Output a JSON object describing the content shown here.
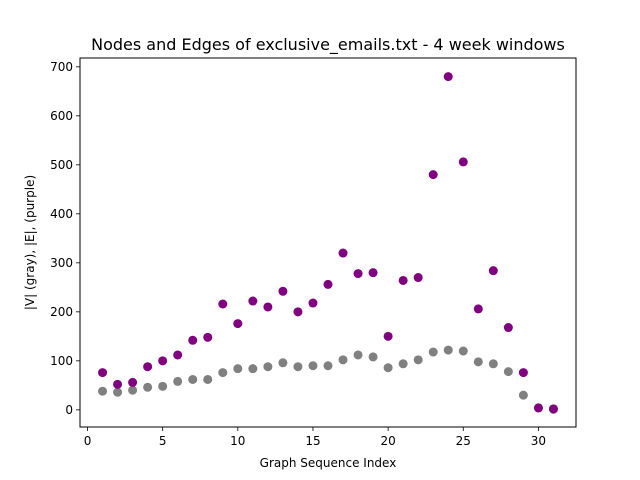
{
  "chart_data": {
    "type": "scatter",
    "title": "Nodes and Edges of exclusive_emails.txt - 4 week windows",
    "xlabel": "Graph Sequence Index",
    "ylabel": "|V| (gray), |E|, (purple)",
    "xlim": [
      -0.5,
      32.5
    ],
    "ylim": [
      -35,
      718
    ],
    "xticks": [
      0,
      5,
      10,
      15,
      20,
      25,
      30
    ],
    "yticks": [
      0,
      100,
      200,
      300,
      400,
      500,
      600,
      700
    ],
    "grid": false,
    "x": [
      1,
      2,
      3,
      4,
      5,
      6,
      7,
      8,
      9,
      10,
      11,
      12,
      13,
      14,
      15,
      16,
      17,
      18,
      19,
      20,
      21,
      22,
      23,
      24,
      25,
      26,
      27,
      28,
      29,
      30,
      31
    ],
    "series": [
      {
        "color": "#808080",
        "values": [
          38,
          36,
          40,
          46,
          48,
          58,
          62,
          62,
          76,
          84,
          84,
          88,
          96,
          88,
          90,
          90,
          102,
          112,
          108,
          86,
          94,
          102,
          118,
          122,
          120,
          98,
          94,
          78,
          30,
          4,
          1
        ]
      },
      {
        "color": "#800080",
        "values": [
          76,
          52,
          56,
          88,
          100,
          112,
          142,
          148,
          216,
          176,
          222,
          210,
          242,
          200,
          218,
          256,
          320,
          278,
          280,
          150,
          264,
          270,
          480,
          680,
          506,
          206,
          284,
          168,
          76,
          4,
          2
        ]
      }
    ]
  }
}
